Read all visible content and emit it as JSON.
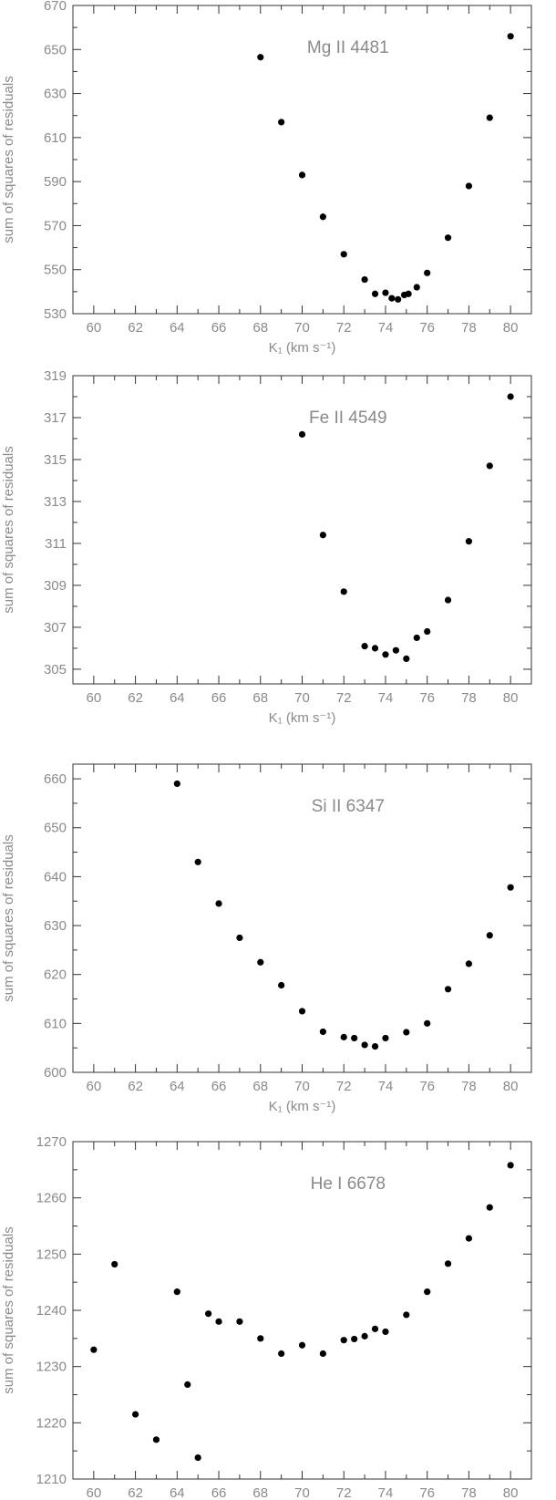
{
  "chart_data": [
    {
      "type": "scatter",
      "title": "Mg II 4481",
      "xlabel": "K₁ (km s⁻¹)",
      "ylabel": "sum of squares of residuals",
      "xlim": [
        59,
        81
      ],
      "ylim": [
        530,
        670
      ],
      "xticks": [
        60,
        62,
        64,
        66,
        68,
        70,
        72,
        74,
        76,
        78,
        80
      ],
      "yticks": [
        530,
        550,
        570,
        590,
        610,
        630,
        650,
        670
      ],
      "grid": false,
      "points": [
        [
          68,
          646.5
        ],
        [
          69,
          617
        ],
        [
          70,
          593
        ],
        [
          71,
          574
        ],
        [
          72,
          557
        ],
        [
          73,
          545.5
        ],
        [
          73.5,
          539
        ],
        [
          74,
          539.5
        ],
        [
          74.3,
          537
        ],
        [
          74.6,
          536.5
        ],
        [
          74.9,
          538.5
        ],
        [
          75.1,
          539
        ],
        [
          75.5,
          542
        ],
        [
          76,
          548.5
        ],
        [
          77,
          564.5
        ],
        [
          78,
          588
        ],
        [
          79,
          619
        ],
        [
          80,
          656
        ]
      ]
    },
    {
      "type": "scatter",
      "title": "Fe II 4549",
      "xlabel": "K₁ (km s⁻¹)",
      "ylabel": "sum of squares of residuals",
      "xlim": [
        59,
        81
      ],
      "ylim": [
        304.3,
        319
      ],
      "xticks": [
        60,
        62,
        64,
        66,
        68,
        70,
        72,
        74,
        76,
        78,
        80
      ],
      "yticks": [
        305,
        307,
        309,
        311,
        313,
        315,
        317,
        319
      ],
      "grid": false,
      "points": [
        [
          70,
          316.2
        ],
        [
          71,
          311.4
        ],
        [
          72,
          308.7
        ],
        [
          73,
          306.1
        ],
        [
          73.5,
          306
        ],
        [
          74,
          305.7
        ],
        [
          74.5,
          305.9
        ],
        [
          75,
          305.5
        ],
        [
          75.5,
          306.5
        ],
        [
          76,
          306.8
        ],
        [
          77,
          308.3
        ],
        [
          78,
          311.1
        ],
        [
          79,
          314.7
        ],
        [
          80,
          318
        ]
      ]
    },
    {
      "type": "scatter",
      "title": "Si II 6347",
      "xlabel": "K₁ (km s⁻¹)",
      "ylabel": "sum of squares of residuals",
      "xlim": [
        59,
        81
      ],
      "ylim": [
        600,
        663
      ],
      "xticks": [
        60,
        62,
        64,
        66,
        68,
        70,
        72,
        74,
        76,
        78,
        80
      ],
      "yticks": [
        600,
        610,
        620,
        630,
        640,
        650,
        660
      ],
      "grid": false,
      "points": [
        [
          64,
          659
        ],
        [
          65,
          643
        ],
        [
          66,
          634.5
        ],
        [
          67,
          627.5
        ],
        [
          68,
          622.5
        ],
        [
          69,
          617.8
        ],
        [
          70,
          612.5
        ],
        [
          71,
          608.3
        ],
        [
          72,
          607.2
        ],
        [
          72.5,
          607
        ],
        [
          73,
          605.6
        ],
        [
          73.5,
          605.3
        ],
        [
          74,
          607
        ],
        [
          75,
          608.2
        ],
        [
          76,
          610
        ],
        [
          77,
          617
        ],
        [
          78,
          622.2
        ],
        [
          79,
          628
        ],
        [
          80,
          637.8
        ]
      ]
    },
    {
      "type": "scatter",
      "title": "He I 6678",
      "xlabel": "K₁ (km s⁻¹)",
      "ylabel": "sum of squares of residuals",
      "xlim": [
        59,
        81
      ],
      "ylim": [
        1210,
        1270
      ],
      "xticks": [
        60,
        62,
        64,
        66,
        68,
        70,
        72,
        74,
        76,
        78,
        80
      ],
      "yticks": [
        1210,
        1220,
        1230,
        1240,
        1250,
        1260,
        1270
      ],
      "grid": false,
      "points": [
        [
          60,
          1233
        ],
        [
          61,
          1248.2
        ],
        [
          62,
          1221.5
        ],
        [
          63,
          1217
        ],
        [
          64,
          1243.3
        ],
        [
          64.5,
          1226.8
        ],
        [
          65,
          1213.8
        ],
        [
          65.5,
          1239.4
        ],
        [
          66,
          1238
        ],
        [
          67,
          1238
        ],
        [
          68,
          1235
        ],
        [
          69,
          1232.3
        ],
        [
          70,
          1233.8
        ],
        [
          71,
          1232.3
        ],
        [
          72,
          1234.7
        ],
        [
          72.5,
          1234.9
        ],
        [
          73,
          1235.4
        ],
        [
          73.5,
          1236.7
        ],
        [
          74,
          1236.2
        ],
        [
          75,
          1239.2
        ],
        [
          76,
          1243.3
        ],
        [
          77,
          1248.3
        ],
        [
          78,
          1252.8
        ],
        [
          79,
          1258.3
        ],
        [
          80,
          1265.8
        ]
      ]
    }
  ]
}
